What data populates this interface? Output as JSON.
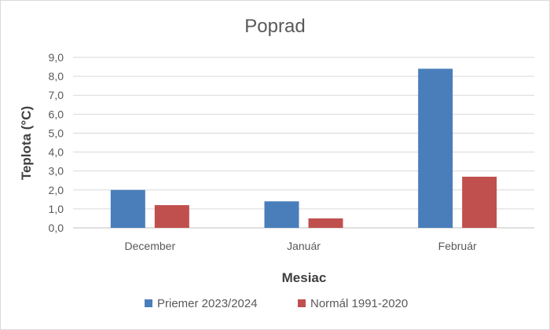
{
  "chart_data": {
    "type": "bar",
    "title": "Poprad",
    "xlabel": "Mesiac",
    "ylabel": "Teplota (°C)",
    "categories": [
      "December",
      "Január",
      "Február"
    ],
    "series": [
      {
        "name": "Priemer 2023/2024",
        "values": [
          2.0,
          1.4,
          8.4
        ],
        "color": "#4a7ebb"
      },
      {
        "name": "Normál 1991-2020",
        "values": [
          1.2,
          0.5,
          2.7
        ],
        "color": "#c0504d"
      }
    ],
    "ylim": [
      0,
      9
    ],
    "ytick_step": 1,
    "yticks": [
      "0,0",
      "1,0",
      "2,0",
      "3,0",
      "4,0",
      "5,0",
      "6,0",
      "7,0",
      "8,0",
      "9,0"
    ],
    "grid": true,
    "legend_position": "bottom"
  }
}
